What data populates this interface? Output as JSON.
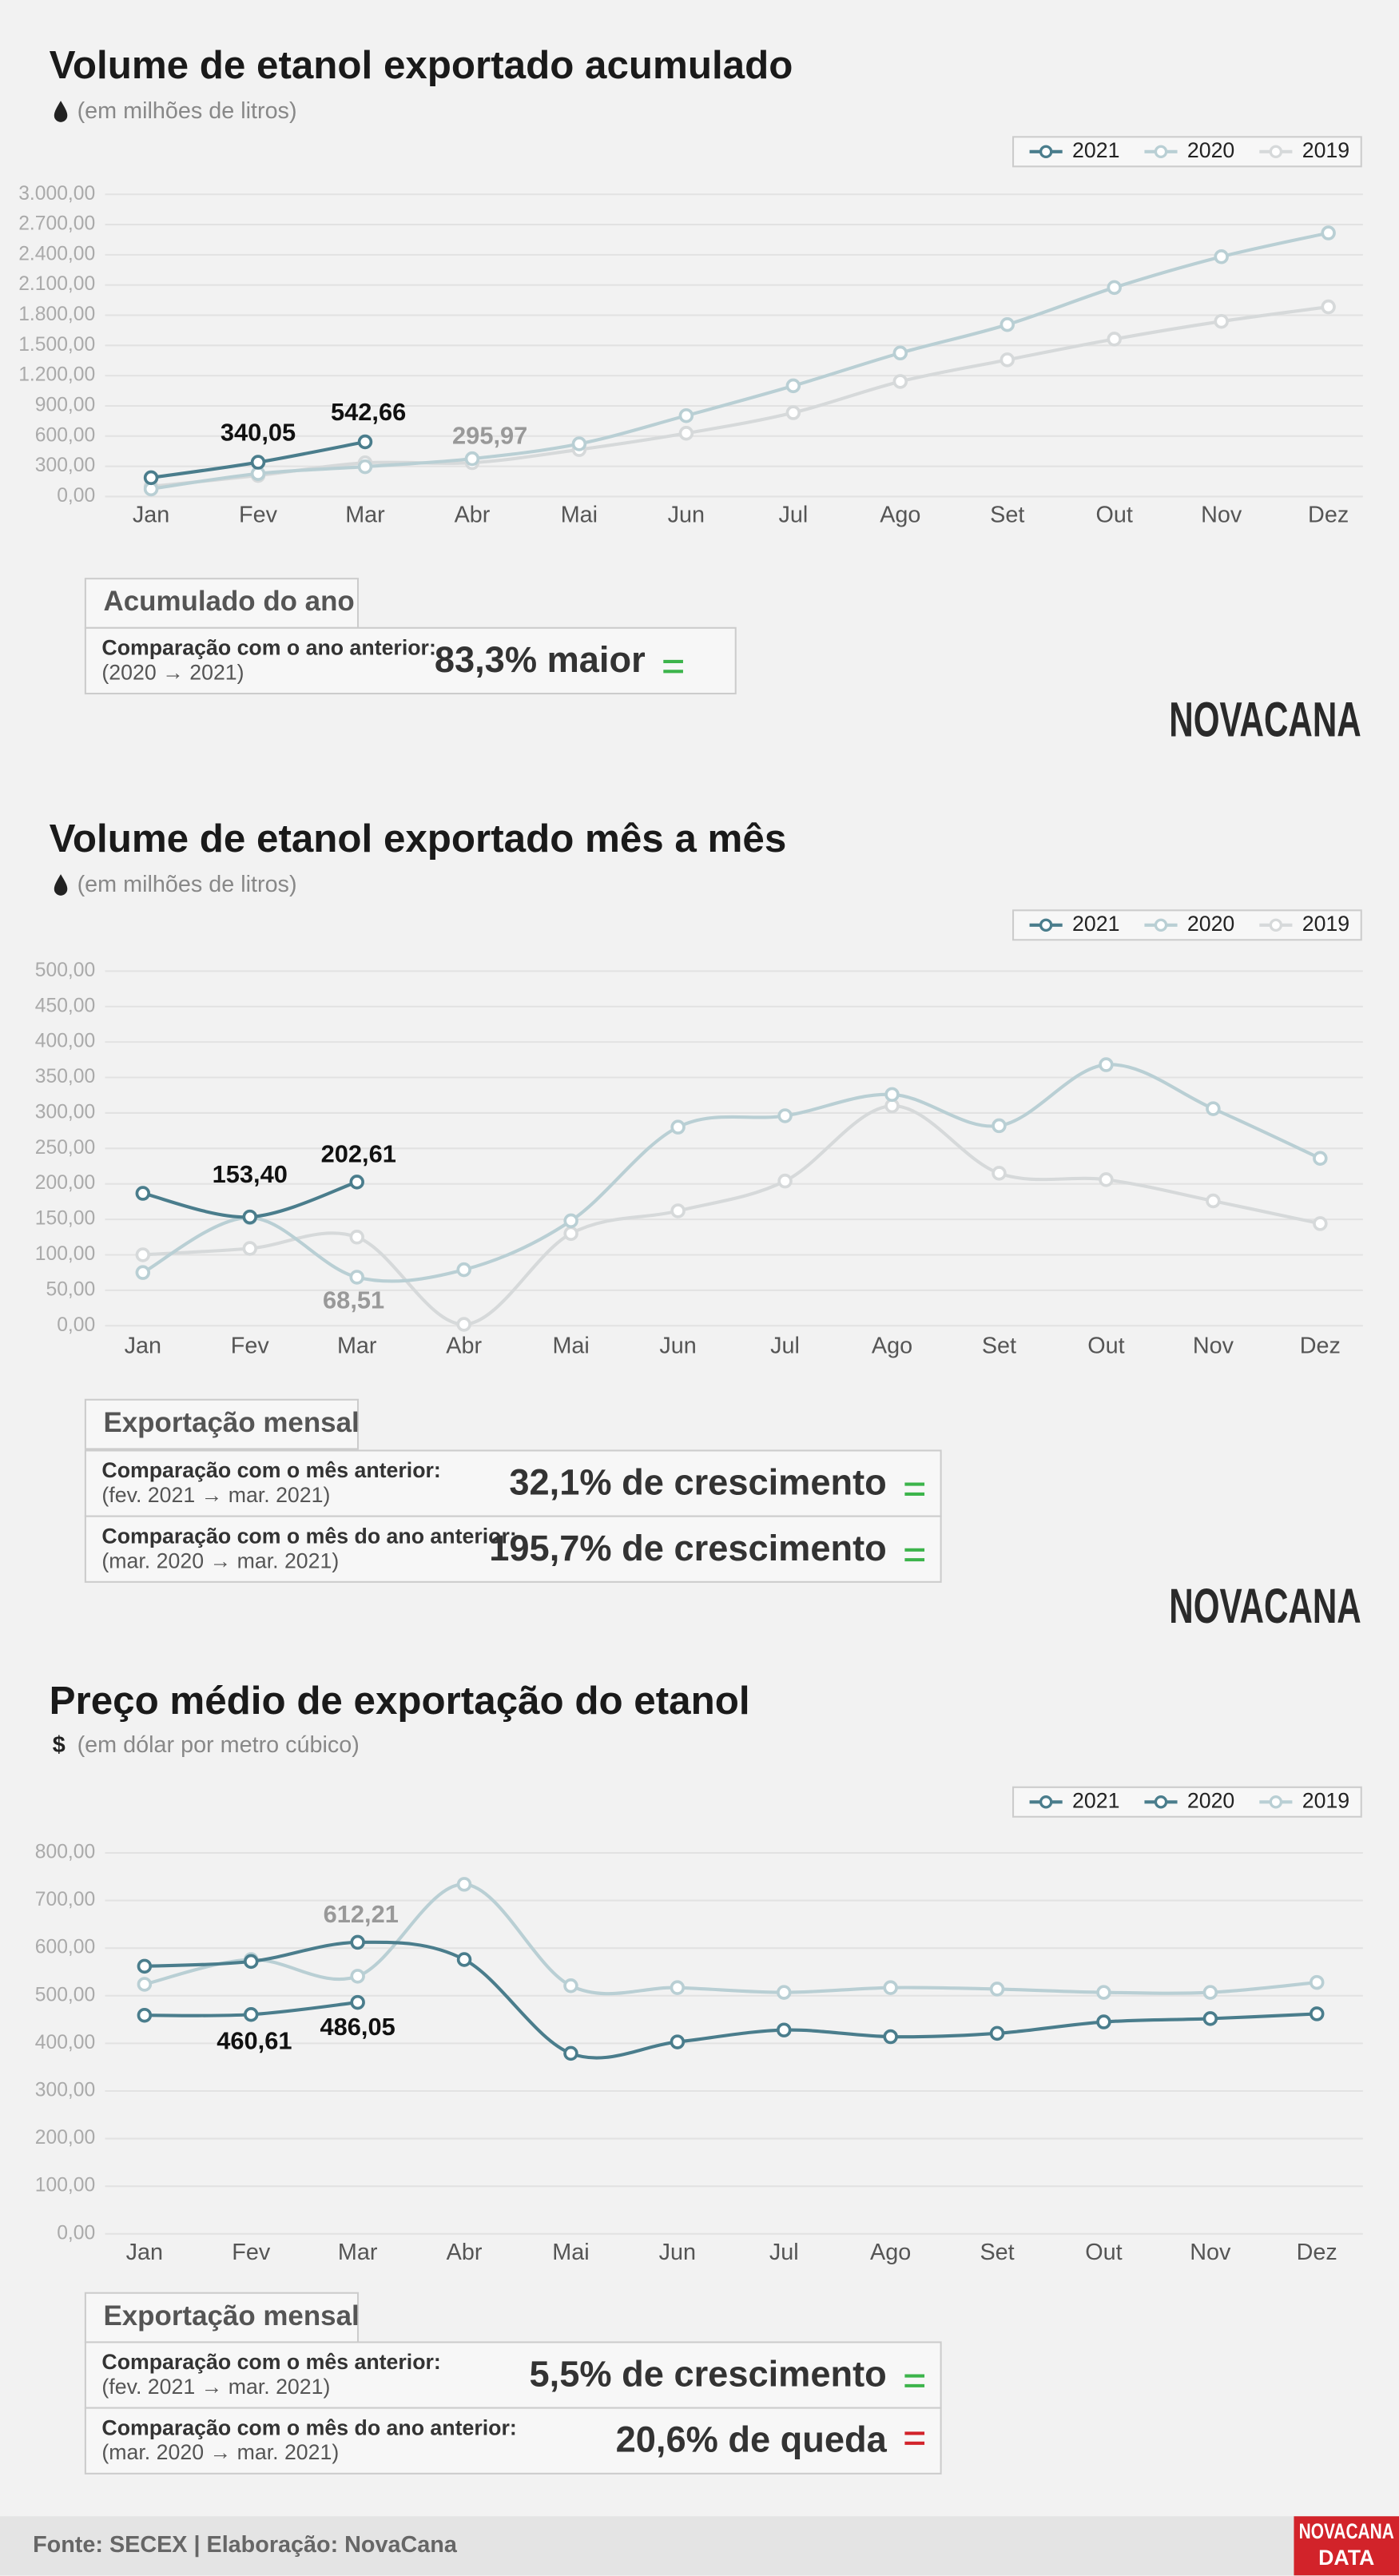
{
  "chart_data": [
    {
      "type": "line",
      "title": "Volume de etanol exportado acumulado",
      "subtitle": "(em milhões de litros)",
      "categories": [
        "Jan",
        "Fev",
        "Mar",
        "Abr",
        "Mai",
        "Jun",
        "Jul",
        "Ago",
        "Set",
        "Out",
        "Nov",
        "Dez"
      ],
      "series": [
        {
          "name": "2021",
          "color": "#4a7d8c",
          "values": [
            186.65,
            340.05,
            542.66,
            null,
            null,
            null,
            null,
            null,
            null,
            null,
            null,
            null
          ],
          "value_labels": [
            null,
            "340,05",
            "542,66",
            null,
            null,
            null,
            null,
            null,
            null,
            null,
            null,
            null
          ]
        },
        {
          "name": "2020",
          "color": "#b9cfd4",
          "values": [
            75,
            227.46,
            295.97,
            375,
            523,
            803,
            1099,
            1425,
            1707,
            2075,
            2381,
            2617
          ],
          "value_labels": [
            null,
            null,
            "295,97",
            null,
            null,
            null,
            null,
            null,
            null,
            null,
            null,
            null
          ]
        },
        {
          "name": "2019",
          "color": "#d6d9da",
          "values": [
            100,
            209,
            334,
            336,
            466,
            628,
            832,
            1142,
            1357,
            1563,
            1739,
            1883
          ]
        }
      ],
      "ylim": [
        0,
        3000
      ],
      "yticks": [
        {
          "value": 0,
          "label": "0,00"
        },
        {
          "value": 300,
          "label": "300,00"
        },
        {
          "value": 600,
          "label": "600,00"
        },
        {
          "value": 900,
          "label": "900,00"
        },
        {
          "value": 1200,
          "label": "1.200,00"
        },
        {
          "value": 1500,
          "label": "1.500,00"
        },
        {
          "value": 1800,
          "label": "1.800,00"
        },
        {
          "value": 2100,
          "label": "2.100,00"
        },
        {
          "value": 2400,
          "label": "2.400,00"
        },
        {
          "value": 2700,
          "label": "2.700,00"
        },
        {
          "value": 3000,
          "label": "3.000,00"
        }
      ],
      "grid": true,
      "summary": {
        "heading": "Acumulado do ano",
        "rows": [
          {
            "label": "Comparação com o ano anterior:",
            "period": "(2020 → 2021)",
            "value": "83,3% maior",
            "trend": "up"
          }
        ]
      },
      "logo": "NOVACANA"
    },
    {
      "type": "line",
      "title": "Volume de etanol exportado mês a mês",
      "subtitle": "(em milhões de litros)",
      "categories": [
        "Jan",
        "Fev",
        "Mar",
        "Abr",
        "Mai",
        "Jun",
        "Jul",
        "Ago",
        "Set",
        "Out",
        "Nov",
        "Dez"
      ],
      "series": [
        {
          "name": "2021",
          "color": "#4a7d8c",
          "values": [
            186.65,
            153.4,
            202.61,
            null,
            null,
            null,
            null,
            null,
            null,
            null,
            null,
            null
          ],
          "value_labels": [
            null,
            "153,40",
            "202,61",
            null,
            null,
            null,
            null,
            null,
            null,
            null,
            null,
            null
          ]
        },
        {
          "name": "2020",
          "color": "#b9cfd4",
          "values": [
            75,
            152.46,
            68.51,
            79,
            148,
            280,
            296,
            326,
            282,
            368,
            306,
            236
          ],
          "value_labels": [
            null,
            null,
            "68,51",
            null,
            null,
            null,
            null,
            null,
            null,
            null,
            null,
            null
          ]
        },
        {
          "name": "2019",
          "color": "#d6d9da",
          "values": [
            100,
            109,
            125,
            2,
            130,
            162,
            204,
            310,
            215,
            206,
            176,
            144
          ]
        }
      ],
      "ylim": [
        0,
        500
      ],
      "yticks": [
        {
          "value": 0,
          "label": "0,00"
        },
        {
          "value": 50,
          "label": "50,00"
        },
        {
          "value": 100,
          "label": "100,00"
        },
        {
          "value": 150,
          "label": "150,00"
        },
        {
          "value": 200,
          "label": "200,00"
        },
        {
          "value": 250,
          "label": "250,00"
        },
        {
          "value": 300,
          "label": "300,00"
        },
        {
          "value": 350,
          "label": "350,00"
        },
        {
          "value": 400,
          "label": "400,00"
        },
        {
          "value": 450,
          "label": "450,00"
        },
        {
          "value": 500,
          "label": "500,00"
        }
      ],
      "grid": true,
      "summary": {
        "heading": "Exportação mensal",
        "rows": [
          {
            "label": "Comparação com o mês anterior:",
            "period": "(fev. 2021 → mar. 2021)",
            "value": "32,1% de crescimento",
            "trend": "up"
          },
          {
            "label": "Comparação com o mês do ano anterior:",
            "period": "(mar. 2020 → mar. 2021)",
            "value": "195,7% de crescimento",
            "trend": "up"
          }
        ]
      },
      "logo": "NOVACANA"
    },
    {
      "type": "line",
      "title": "Preço médio de exportação do etanol",
      "unit_symbol": "$",
      "subtitle": "(em dólar por metro cúbico)",
      "categories": [
        "Jan",
        "Fev",
        "Mar",
        "Abr",
        "Mai",
        "Jun",
        "Jul",
        "Ago",
        "Set",
        "Out",
        "Nov",
        "Dez"
      ],
      "series": [
        {
          "name": "2021",
          "color": "#4a7d8c",
          "values": [
            459,
            460.61,
            486.05,
            null,
            null,
            null,
            null,
            null,
            null,
            null,
            null,
            null
          ],
          "value_labels": [
            null,
            "460,61",
            "486,05",
            null,
            null,
            null,
            null,
            null,
            null,
            null,
            null,
            null
          ]
        },
        {
          "name": "2020",
          "color": "#4a7d8c",
          "values": [
            562,
            572,
            612.21,
            576,
            379,
            403,
            428,
            414,
            421,
            445,
            452,
            462
          ],
          "value_labels": [
            null,
            null,
            "612,21",
            null,
            null,
            null,
            null,
            null,
            null,
            null,
            null,
            null
          ]
        },
        {
          "name": "2019",
          "color": "#b9cfd4",
          "values": [
            524,
            576,
            541,
            734,
            521,
            517,
            507,
            517,
            514,
            507,
            507,
            528
          ]
        }
      ],
      "ylim": [
        0,
        800
      ],
      "yticks": [
        {
          "value": 0,
          "label": "0,00"
        },
        {
          "value": 100,
          "label": "100,00"
        },
        {
          "value": 200,
          "label": "200,00"
        },
        {
          "value": 300,
          "label": "300,00"
        },
        {
          "value": 400,
          "label": "400,00"
        },
        {
          "value": 500,
          "label": "500,00"
        },
        {
          "value": 600,
          "label": "600,00"
        },
        {
          "value": 700,
          "label": "700,00"
        },
        {
          "value": 800,
          "label": "800,00"
        }
      ],
      "grid": true,
      "summary": {
        "heading": "Exportação mensal",
        "rows": [
          {
            "label": "Comparação com o mês anterior:",
            "period": "(fev. 2021 → mar. 2021)",
            "value": "5,5% de crescimento",
            "trend": "up"
          },
          {
            "label": "Comparação com o mês do ano anterior:",
            "period": "(mar. 2020 → mar. 2021)",
            "value": "20,6% de queda",
            "trend": "down"
          }
        ]
      }
    }
  ],
  "footer": "Fonte: SECEX | Elaboração: NovaCana",
  "footer_logo": [
    "NOVACANA",
    "DATA"
  ]
}
